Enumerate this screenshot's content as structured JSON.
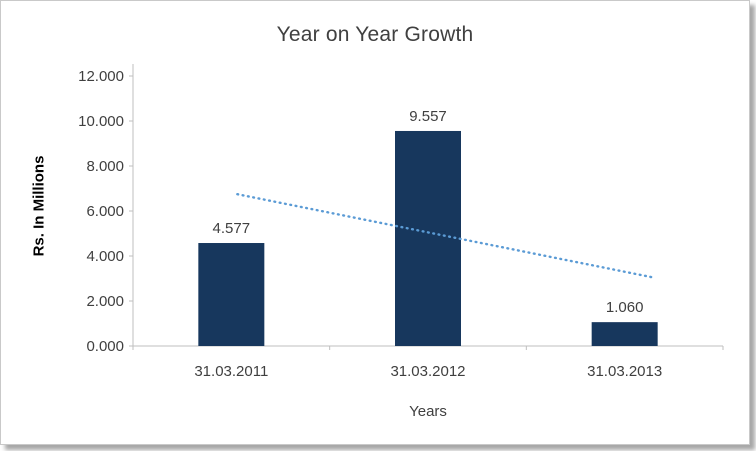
{
  "chart_data": {
    "type": "bar",
    "title": "Year on Year Growth",
    "xlabel": "Years",
    "ylabel": "Rs. In Millions",
    "categories": [
      "31.03.2011",
      "31.03.2012",
      "31.03.2013"
    ],
    "values": [
      4.577,
      9.557,
      1.06
    ],
    "value_labels": [
      "4.577",
      "9.557",
      "1.060"
    ],
    "ylim": [
      0,
      12
    ],
    "ytick_step": 2,
    "ytick_labels": [
      "0.000",
      "2.000",
      "4.000",
      "6.000",
      "8.000",
      "10.000",
      "12.000"
    ],
    "grid": false,
    "legend": "none",
    "bar_color": "#17375d",
    "trendline": {
      "type": "linear",
      "style": "dotted",
      "color": "#5b9bd5",
      "start_value": 6.8,
      "end_value": 3.3
    },
    "colors": {
      "title": "#404040",
      "axis_text": "#3f3f3f",
      "axis_line": "#bfbfbf"
    }
  }
}
